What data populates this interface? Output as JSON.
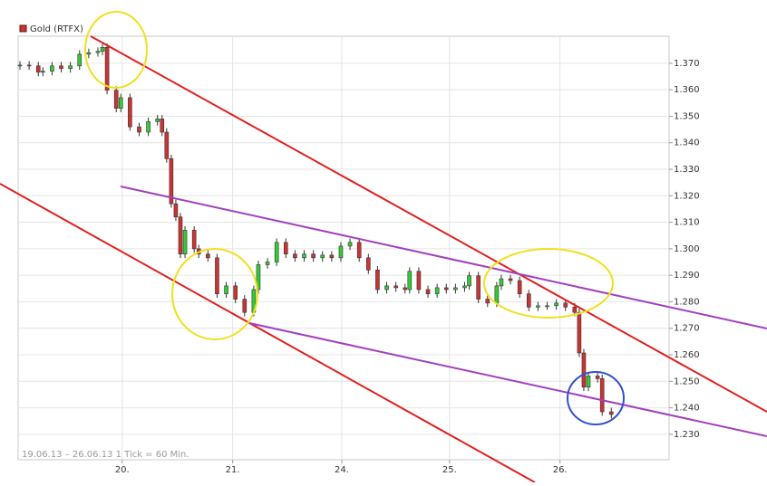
{
  "chart_data": {
    "type": "candlestick",
    "series_name": "Gold (RTFX)",
    "footnote": "19.06.13 – 26.06.13   1 Tick = 60 Min.",
    "colors": {
      "up": "#33cc33",
      "down": "#cc3333",
      "wick": "#333333"
    },
    "xlim": [
      -0.4,
      141.6
    ],
    "xticks": [
      {
        "value": 22.3,
        "label": "20."
      },
      {
        "value": 46.4,
        "label": "21."
      },
      {
        "value": 70.2,
        "label": "24."
      },
      {
        "value": 93.7,
        "label": "25."
      },
      {
        "value": 117.8,
        "label": "26."
      }
    ],
    "ylim": [
      1220.4,
      1380.2
    ],
    "yticks": [
      {
        "value": 1230,
        "label": "1.230"
      },
      {
        "value": 1240,
        "label": "1.240"
      },
      {
        "value": 1250,
        "label": "1.250"
      },
      {
        "value": 1260,
        "label": "1.260"
      },
      {
        "value": 1270,
        "label": "1.270"
      },
      {
        "value": 1280,
        "label": "1.280"
      },
      {
        "value": 1290,
        "label": "1.290"
      },
      {
        "value": 1300,
        "label": "1.300"
      },
      {
        "value": 1310,
        "label": "1.310"
      },
      {
        "value": 1320,
        "label": "1.320"
      },
      {
        "value": 1330,
        "label": "1.330"
      },
      {
        "value": 1340,
        "label": "1.340"
      },
      {
        "value": 1350,
        "label": "1.350"
      },
      {
        "value": 1360,
        "label": "1.360"
      },
      {
        "value": 1370,
        "label": "1.370"
      }
    ],
    "grid": true,
    "x": [
      0,
      2,
      4,
      5,
      7,
      9,
      11,
      13,
      15,
      17,
      18,
      19,
      21,
      22,
      24,
      26,
      28,
      30,
      31,
      32,
      33,
      34,
      35,
      36,
      38,
      39,
      41,
      43,
      45,
      47,
      49,
      51,
      52,
      54,
      56,
      58,
      60,
      62,
      64,
      66,
      68,
      70,
      72,
      74,
      76,
      78,
      80,
      82,
      84,
      85,
      87,
      89,
      91,
      93,
      95,
      97,
      98,
      100,
      102,
      104,
      105,
      107,
      109,
      111,
      113,
      115,
      117,
      119,
      121,
      122,
      123,
      124,
      126,
      127,
      129
    ],
    "open": [
      1369,
      1369.3,
      1369,
      1366.6,
      1367,
      1369,
      1368,
      1369,
      1373.4,
      1374,
      1374.5,
      1376,
      1359.8,
      1353,
      1357,
      1346,
      1344,
      1348,
      1349,
      1344,
      1334,
      1317,
      1312,
      1298,
      1307,
      1300,
      1298,
      1296.6,
      1283,
      1286,
      1281,
      1276,
      1284.6,
      1294,
      1295,
      1302.4,
      1298,
      1296.6,
      1298,
      1296.6,
      1297.6,
      1296.6,
      1301,
      1302.4,
      1296.6,
      1292,
      1284.6,
      1286,
      1285.3,
      1284.6,
      1291.5,
      1284.6,
      1283,
      1285.3,
      1284.6,
      1285.3,
      1286,
      1289.8,
      1281,
      1279.5,
      1286,
      1288.7,
      1288,
      1283,
      1278,
      1278.5,
      1278.5,
      1279.5,
      1278,
      1276,
      1260.7,
      1247.8,
      1252,
      1251,
      1238.5
    ],
    "high": [
      1370.8,
      1370.8,
      1370.5,
      1368.5,
      1370.5,
      1370.5,
      1370.5,
      1374.9,
      1375.5,
      1376,
      1377.5,
      1377.5,
      1361.3,
      1358.5,
      1358.5,
      1347.5,
      1349.5,
      1350.5,
      1350.5,
      1345.5,
      1335.5,
      1318.5,
      1313.5,
      1308.5,
      1308.5,
      1301.5,
      1299.5,
      1298.1,
      1287.5,
      1287.5,
      1282.5,
      1286.1,
      1295.5,
      1296.5,
      1303.9,
      1303.9,
      1299.5,
      1299.5,
      1299.5,
      1299.1,
      1299.1,
      1302.5,
      1303.9,
      1303.9,
      1298.1,
      1293.5,
      1287.5,
      1287.5,
      1286.8,
      1293,
      1293,
      1286.1,
      1286.8,
      1286.8,
      1286.8,
      1287.5,
      1291.3,
      1291.3,
      1282.5,
      1287.5,
      1290.2,
      1290.2,
      1289.5,
      1284.5,
      1280,
      1280,
      1281,
      1281,
      1279.5,
      1277.5,
      1262.2,
      1253.5,
      1253.5,
      1252.5,
      1240
    ],
    "low": [
      1367.5,
      1367.5,
      1365.1,
      1365.1,
      1365.5,
      1366.5,
      1366.5,
      1367.5,
      1371.9,
      1372.5,
      1373,
      1358.3,
      1351.5,
      1351.5,
      1344.5,
      1342.5,
      1342.5,
      1346.5,
      1342.5,
      1332.5,
      1315.5,
      1310.5,
      1296.5,
      1296.5,
      1298.5,
      1296.5,
      1295.1,
      1281.5,
      1281.5,
      1279.5,
      1274.5,
      1274.5,
      1283.1,
      1292.5,
      1293.5,
      1296.5,
      1295.1,
      1295.1,
      1295.1,
      1295.1,
      1295.1,
      1295.1,
      1299.5,
      1295.1,
      1290.5,
      1283.1,
      1283.1,
      1283.8,
      1283.1,
      1283.1,
      1283.1,
      1281.5,
      1281.5,
      1283.1,
      1283.1,
      1283.8,
      1284.5,
      1279.5,
      1278,
      1278,
      1284.5,
      1286.5,
      1281.5,
      1276.5,
      1276.5,
      1277,
      1277,
      1276.5,
      1274.5,
      1259.2,
      1246.3,
      1246.3,
      1249.5,
      1237,
      1236
    ],
    "close": [
      1369.3,
      1369,
      1366.6,
      1367,
      1369,
      1368,
      1369,
      1373.4,
      1374,
      1374.5,
      1376,
      1359.8,
      1353,
      1357,
      1346,
      1344,
      1348,
      1349,
      1344,
      1334,
      1317,
      1312,
      1298,
      1307,
      1300,
      1298,
      1296.6,
      1283,
      1286,
      1281,
      1276,
      1284.6,
      1294,
      1295,
      1302.4,
      1298,
      1296.6,
      1298,
      1296.6,
      1297.6,
      1296.6,
      1301,
      1302.4,
      1296.6,
      1292,
      1284.6,
      1286,
      1285.3,
      1284.6,
      1291.5,
      1284.6,
      1283,
      1285.3,
      1284.6,
      1285.3,
      1286,
      1289.8,
      1281,
      1279.5,
      1286,
      1288.7,
      1288,
      1283,
      1278,
      1278.5,
      1278.5,
      1279.5,
      1278,
      1276,
      1260.7,
      1247.8,
      1252,
      1251,
      1238.5,
      1237.5
    ]
  }
}
